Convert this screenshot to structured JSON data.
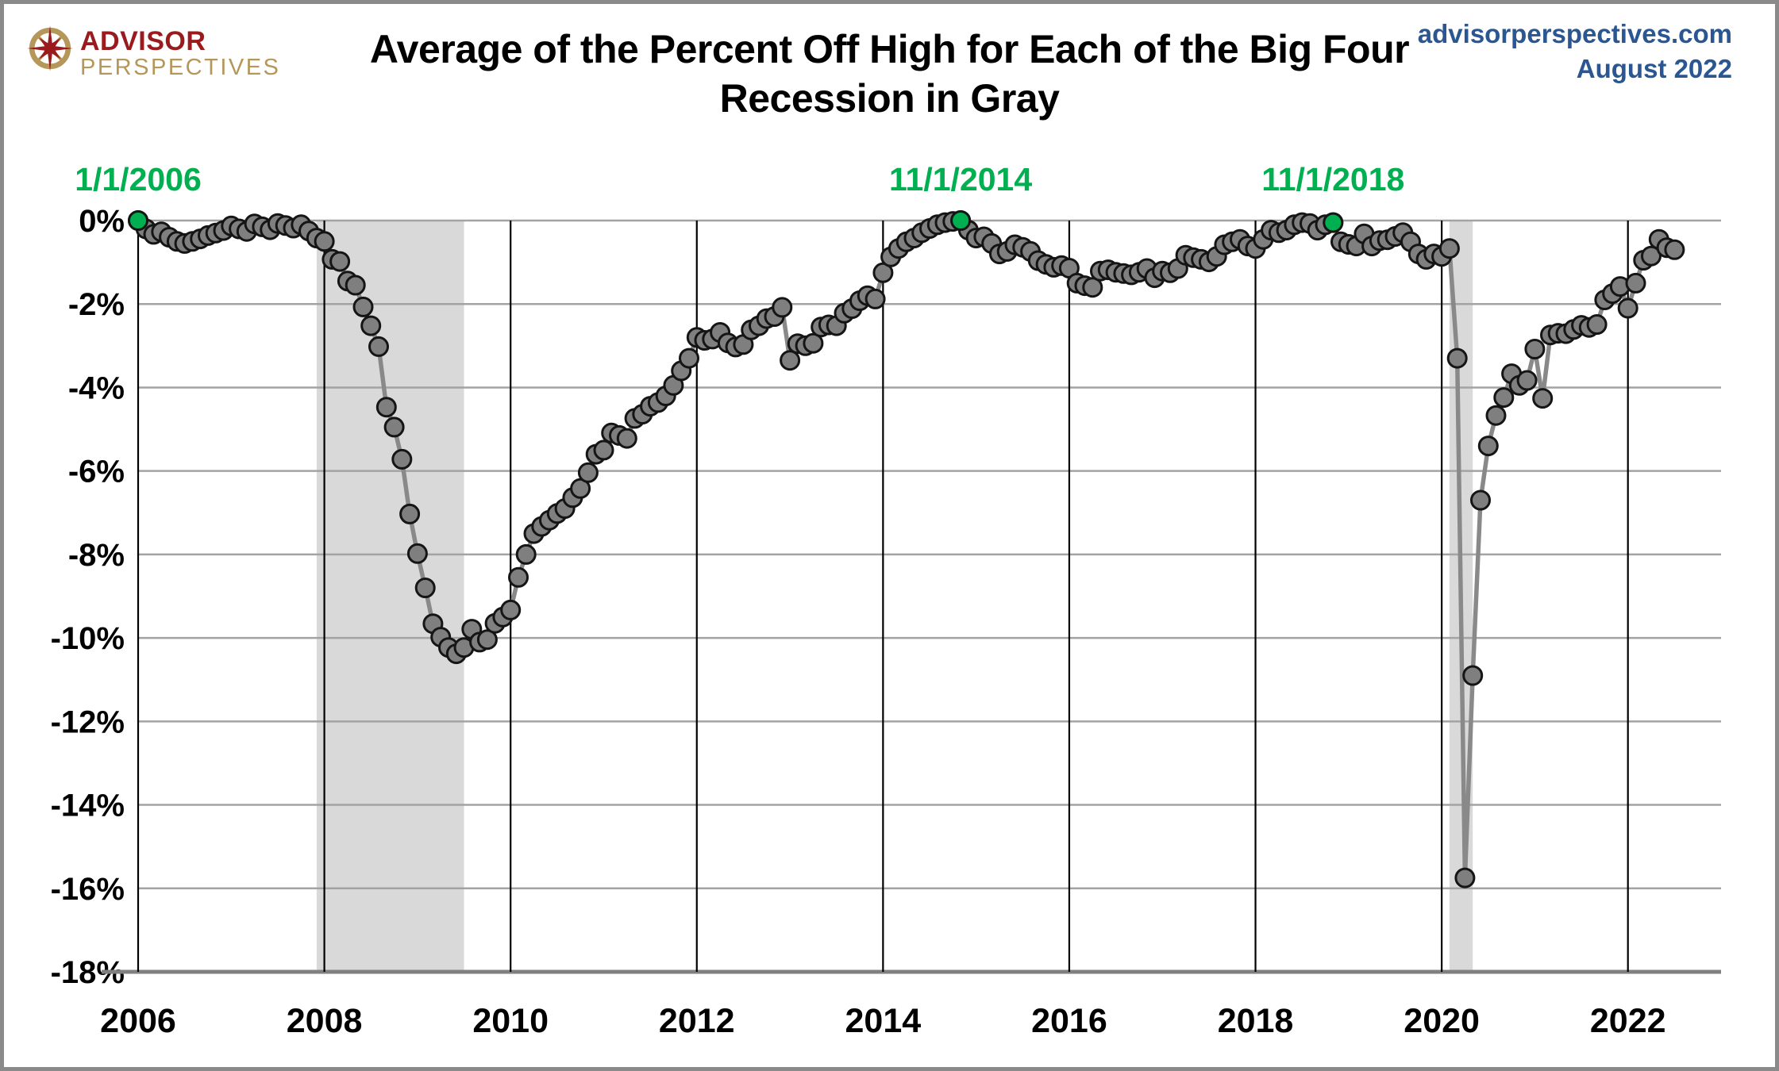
{
  "header": {
    "logo_title": "ADVISOR",
    "logo_subtitle": "PERSPECTIVES",
    "site": "advisorperspectives.com",
    "date": "August 2022"
  },
  "chart_data": {
    "type": "line",
    "title_line1": "Average of the Percent Off High for Each of the Big Four",
    "title_line2": "Recession in Gray",
    "xlabel": "",
    "ylabel": "",
    "xlim": [
      2006,
      2023
    ],
    "ylim": [
      -18,
      0
    ],
    "grid": true,
    "x_tick_labels": [
      "2006",
      "2008",
      "2010",
      "2012",
      "2014",
      "2016",
      "2018",
      "2020",
      "2022"
    ],
    "y_tick_labels": [
      "0%",
      "-2%",
      "-4%",
      "-6%",
      "-8%",
      "-10%",
      "-12%",
      "-14%",
      "-16%",
      "-18%"
    ],
    "start_month": "2006-01",
    "series": [
      {
        "name": "Average of the Percent Off High for the Big Four",
        "monthly_values": [
          0.0,
          -0.2,
          -0.33,
          -0.27,
          -0.4,
          -0.5,
          -0.55,
          -0.5,
          -0.44,
          -0.36,
          -0.3,
          -0.24,
          -0.13,
          -0.2,
          -0.26,
          -0.08,
          -0.15,
          -0.22,
          -0.07,
          -0.12,
          -0.18,
          -0.1,
          -0.25,
          -0.42,
          -0.5,
          -0.93,
          -0.98,
          -1.45,
          -1.55,
          -2.07,
          -2.52,
          -3.02,
          -4.47,
          -4.95,
          -5.72,
          -7.03,
          -7.98,
          -8.8,
          -9.66,
          -9.98,
          -10.23,
          -10.38,
          -10.23,
          -9.79,
          -10.1,
          -10.04,
          -9.65,
          -9.5,
          -9.33,
          -8.55,
          -8.0,
          -7.5,
          -7.33,
          -7.18,
          -7.02,
          -6.9,
          -6.64,
          -6.42,
          -6.04,
          -5.6,
          -5.5,
          -5.09,
          -5.15,
          -5.22,
          -4.74,
          -4.64,
          -4.45,
          -4.36,
          -4.2,
          -3.95,
          -3.6,
          -3.3,
          -2.8,
          -2.87,
          -2.84,
          -2.68,
          -2.93,
          -3.03,
          -2.97,
          -2.62,
          -2.52,
          -2.35,
          -2.3,
          -2.08,
          -3.35,
          -2.95,
          -3.0,
          -2.94,
          -2.55,
          -2.5,
          -2.52,
          -2.22,
          -2.11,
          -1.92,
          -1.8,
          -1.88,
          -1.25,
          -0.87,
          -0.67,
          -0.51,
          -0.42,
          -0.29,
          -0.19,
          -0.1,
          -0.05,
          -0.02,
          0.0,
          -0.23,
          -0.42,
          -0.39,
          -0.55,
          -0.8,
          -0.74,
          -0.58,
          -0.64,
          -0.74,
          -0.96,
          -1.05,
          -1.12,
          -1.08,
          -1.14,
          -1.5,
          -1.56,
          -1.6,
          -1.21,
          -1.18,
          -1.24,
          -1.27,
          -1.3,
          -1.24,
          -1.15,
          -1.37,
          -1.21,
          -1.25,
          -1.15,
          -0.83,
          -0.89,
          -0.93,
          -0.99,
          -0.86,
          -0.58,
          -0.51,
          -0.45,
          -0.61,
          -0.67,
          -0.45,
          -0.23,
          -0.29,
          -0.23,
          -0.1,
          -0.05,
          -0.07,
          -0.23,
          -0.1,
          -0.05,
          -0.51,
          -0.57,
          -0.61,
          -0.32,
          -0.61,
          -0.48,
          -0.46,
          -0.38,
          -0.29,
          -0.51,
          -0.8,
          -0.93,
          -0.8,
          -0.86,
          -0.67,
          -3.3,
          -15.75,
          -10.9,
          -6.7,
          -5.4,
          -4.67,
          -4.24,
          -3.67,
          -3.95,
          -3.83,
          -3.08,
          -4.26,
          -2.74,
          -2.7,
          -2.71,
          -2.61,
          -2.51,
          -2.56,
          -2.49,
          -1.9,
          -1.75,
          -1.58,
          -2.1,
          -1.5,
          -0.95,
          -0.85,
          -0.45,
          -0.65,
          -0.7
        ]
      }
    ],
    "markers": [
      {
        "index": 0,
        "label": "1/1/2006"
      },
      {
        "index": 106,
        "label": "11/1/2014"
      },
      {
        "index": 154,
        "label": "11/1/2018"
      }
    ],
    "recession_bands": [
      {
        "start": 2007.917,
        "end": 2009.5
      },
      {
        "start": 2020.083,
        "end": 2020.333
      }
    ],
    "legend": "none",
    "colors": {
      "line": "#898989",
      "dot_fill": "#7f7f7f",
      "dot_stroke": "#151515",
      "marker_green": "#00b050",
      "band": "#d9d9d9",
      "grid": "#a3a3a3",
      "year_line": "#000000",
      "axis": "#808080",
      "title": "#000000",
      "source_blue": "#2a5692",
      "logo_red": "#9a1b1e",
      "logo_gold": "#b5975a"
    }
  }
}
